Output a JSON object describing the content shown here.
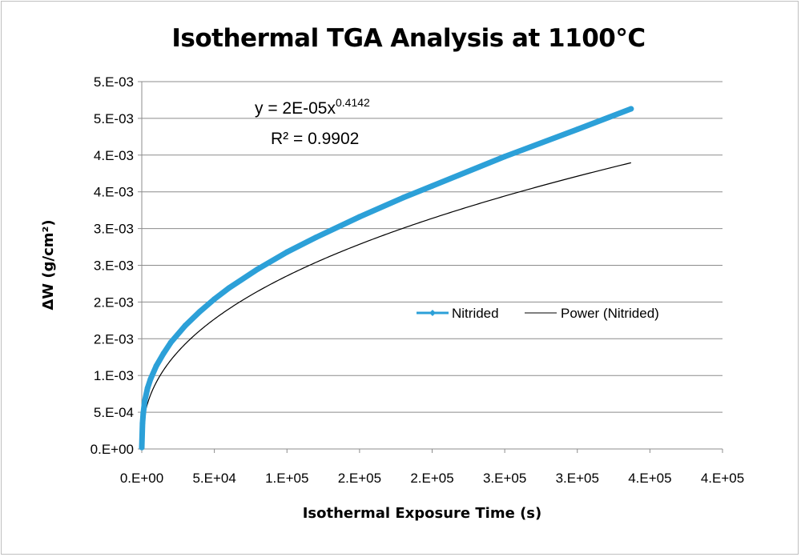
{
  "chart_data": {
    "type": "scatter",
    "title": "Isothermal TGA Analysis at 1100°C",
    "xlabel": "Isothermal Exposure Time (s)",
    "ylabel": "ΔW (g/cm²)",
    "xlim": [
      0,
      400000
    ],
    "ylim": [
      0,
      0.005
    ],
    "x_ticks": [
      0,
      50000,
      100000,
      150000,
      200000,
      250000,
      300000,
      350000,
      400000
    ],
    "x_tick_labels": [
      "0.E+00",
      "5.E+04",
      "1.E+05",
      "2.E+05",
      "2.E+05",
      "3.E+05",
      "3.E+05",
      "4.E+05",
      "4.E+05"
    ],
    "y_ticks": [
      0,
      0.0005,
      0.001,
      0.0015,
      0.002,
      0.0025,
      0.003,
      0.0035,
      0.004,
      0.0045,
      0.005
    ],
    "y_tick_labels": [
      "0.E+00",
      "5.E-04",
      "1.E-03",
      "2.E-03",
      "2.E-03",
      "3.E-03",
      "3.E-03",
      "4.E-03",
      "4.E-03",
      "5.E-03",
      "5.E-03"
    ],
    "grid": true,
    "legend_position": "center-right",
    "series": [
      {
        "name": "Nitrided",
        "color": "#2ca0d8",
        "x": [
          0,
          500,
          1000,
          2000,
          4000,
          6000,
          10000,
          15000,
          20000,
          30000,
          40000,
          50000,
          60000,
          80000,
          100000,
          120000,
          150000,
          180000,
          200000,
          250000,
          300000,
          337000
        ],
        "y": [
          2e-05,
          0.00035,
          0.00048,
          0.00065,
          0.00083,
          0.00095,
          0.00113,
          0.0013,
          0.00145,
          0.00168,
          0.00187,
          0.00204,
          0.00219,
          0.00245,
          0.00268,
          0.00288,
          0.00316,
          0.00342,
          0.00358,
          0.00398,
          0.00435,
          0.00463
        ]
      },
      {
        "name": "Power (Nitrided)",
        "color": "#000000",
        "type": "power",
        "coef": 2e-05,
        "exponent": 0.4142,
        "x_range": [
          200,
          337000
        ]
      }
    ],
    "annotations": {
      "equation_base": "y = 2E-05x",
      "equation_exponent": "0.4142",
      "r_squared": "R² = 0.9902"
    }
  }
}
